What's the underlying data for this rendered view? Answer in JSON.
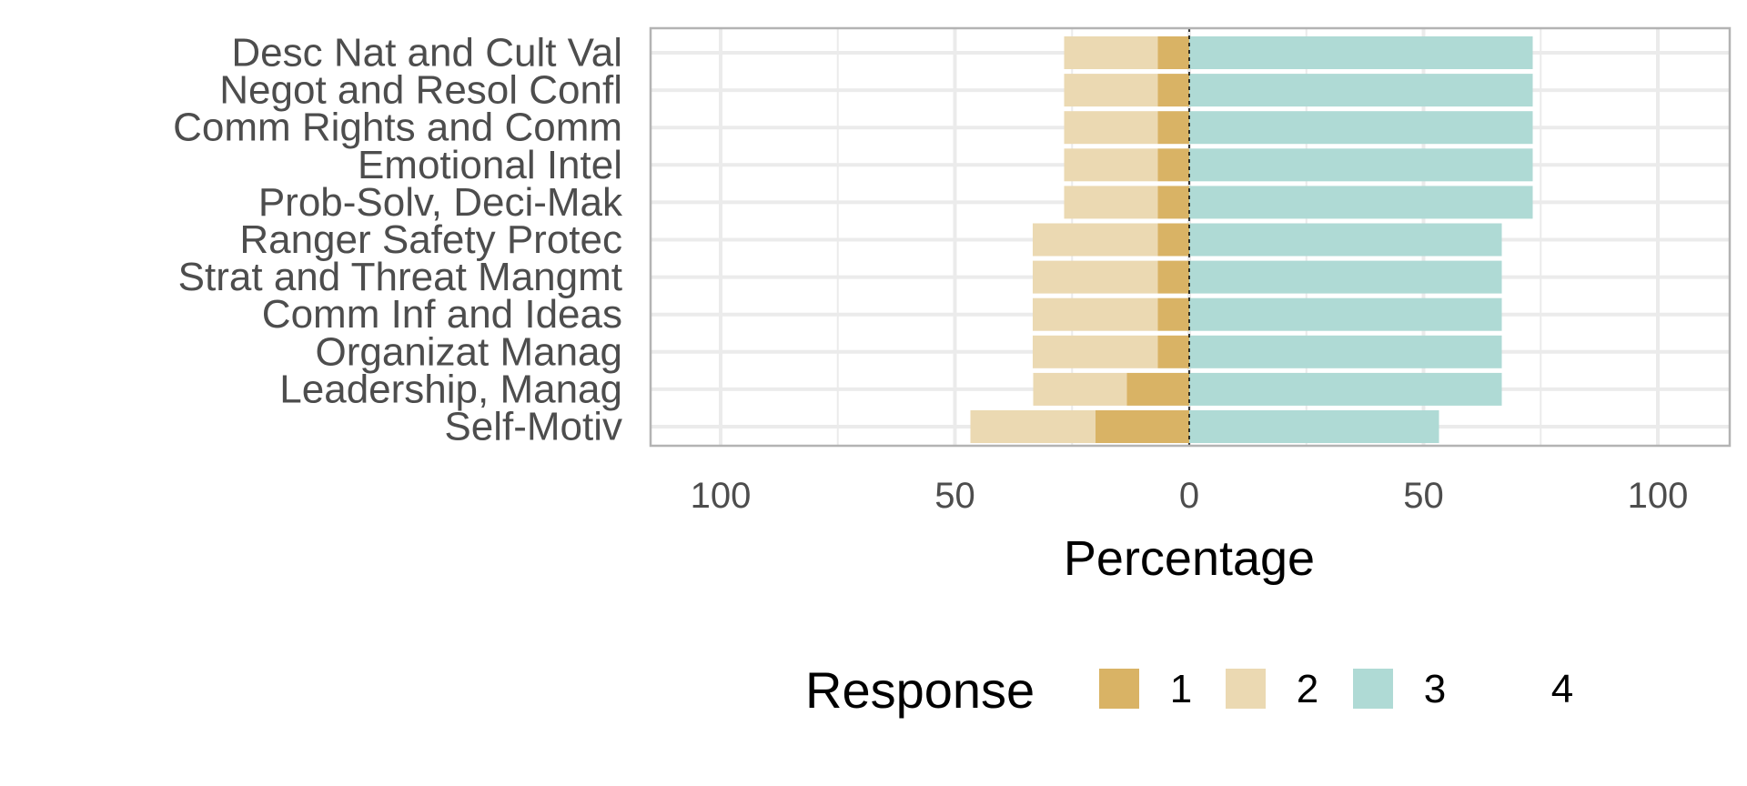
{
  "chart_data": {
    "type": "bar",
    "orientation": "horizontal",
    "stacked": "diverging",
    "categories": [
      "Desc Nat and Cult Val",
      "Negot and Resol Confl",
      "Comm Rights and Comm",
      "Emotional Intel",
      "Prob-Solv, Deci-Mak",
      "Ranger Safety Protec",
      "Strat and Threat Mangmt",
      "Comm Inf and Ideas",
      "Organizat Manag",
      "Leadership, Manag",
      "Self-Motiv"
    ],
    "series": [
      {
        "name": "1",
        "color": "#d9b365",
        "side": "negative",
        "values": [
          6.7,
          6.7,
          6.7,
          6.7,
          6.7,
          6.7,
          6.7,
          6.7,
          6.7,
          13.3,
          20
        ]
      },
      {
        "name": "2",
        "color": "#ebd9b2",
        "side": "negative",
        "values": [
          20,
          20,
          20,
          20,
          20,
          26.7,
          26.7,
          26.7,
          26.7,
          20,
          26.7
        ]
      },
      {
        "name": "3",
        "color": "#afdad5",
        "side": "positive",
        "values": [
          73.3,
          73.3,
          73.3,
          73.3,
          73.3,
          66.7,
          66.7,
          66.7,
          66.7,
          66.7,
          53.3
        ]
      },
      {
        "name": "4",
        "color": "#ffffff",
        "side": "positive",
        "values": [
          0,
          0,
          0,
          0,
          0,
          0,
          0,
          0,
          0,
          0,
          0
        ]
      }
    ],
    "xlabel": "Percentage",
    "xlim": [
      -100,
      100
    ],
    "xticks": [
      -100,
      -50,
      0,
      50,
      100
    ],
    "xtick_labels": [
      "100",
      "50",
      "0",
      "50",
      "100"
    ],
    "grid": true,
    "legend": {
      "title": "Response",
      "placement": "bottom"
    }
  }
}
